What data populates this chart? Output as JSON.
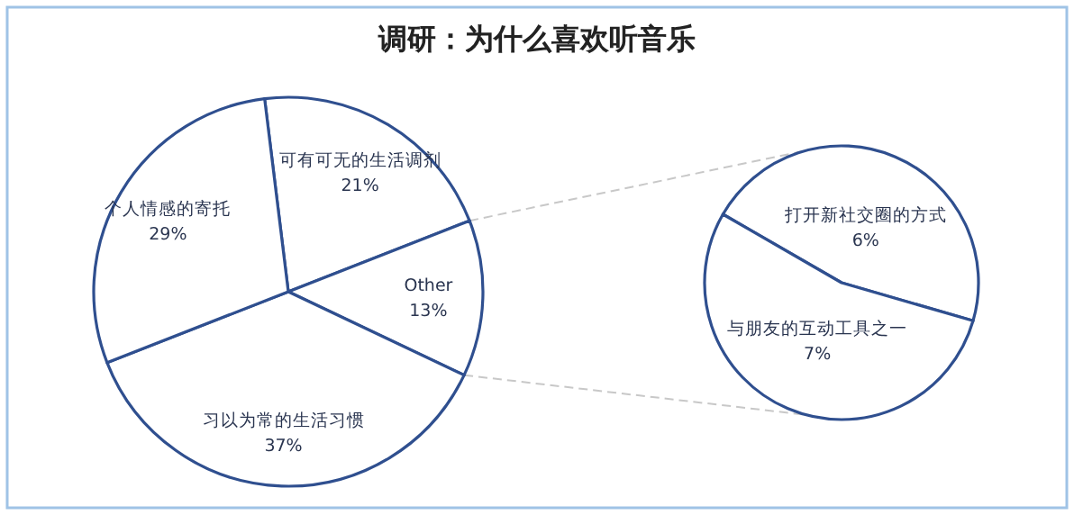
{
  "chart_data": [
    {
      "type": "pie",
      "title": "调研：为什么喜欢听音乐",
      "categories": [
        "可有可无的生活调剂",
        "Other",
        "习以为常的生活习惯",
        "个人情感的寄托"
      ],
      "values": [
        21,
        13,
        37,
        29
      ],
      "value_labels": [
        "21%",
        "13%",
        "37%",
        "29%"
      ],
      "colors": [
        "#ffffff",
        "#ffffff",
        "#ffffff",
        "#ffffff"
      ],
      "legend": false
    },
    {
      "type": "pie",
      "categories": [
        "打开新社交圈的方式",
        "与朋友的互动工具之一"
      ],
      "values": [
        6,
        7
      ],
      "value_labels": [
        "6%",
        "7%"
      ],
      "colors": [
        "#ffffff",
        "#ffffff"
      ],
      "legend": false
    }
  ]
}
